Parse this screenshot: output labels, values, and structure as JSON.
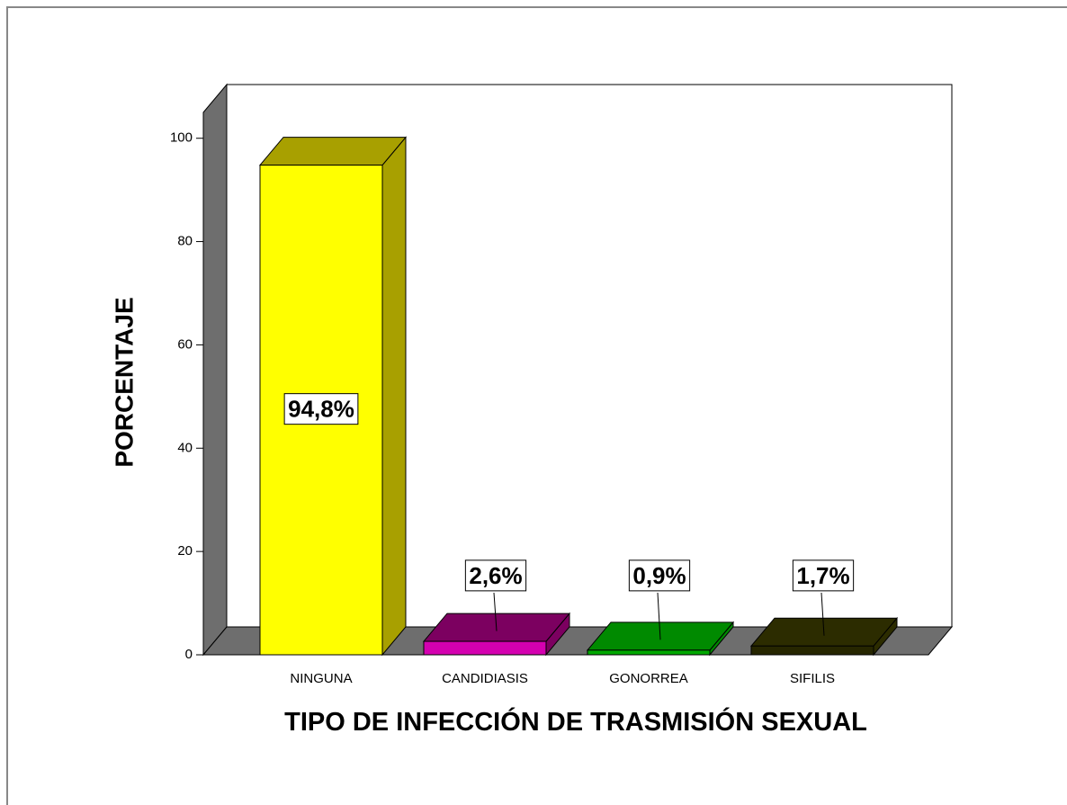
{
  "chart_data": {
    "type": "bar3d",
    "ylabel": "PORCENTAJE",
    "xlabel": "TIPO DE INFECCIÓN DE TRASMISIÓN SEXUAL",
    "categories": [
      "NINGUNA",
      "CANDIDIASIS",
      "GONORREA",
      "SIFILIS"
    ],
    "values": [
      94.8,
      2.6,
      0.9,
      1.7
    ],
    "value_labels": [
      "94,8%",
      "2,6%",
      "0,9%",
      "1,7%"
    ],
    "colors": [
      "#ffff00",
      "#d400b0",
      "#00a800",
      "#262600"
    ],
    "side_colors": [
      "#a8a000",
      "#7c0060",
      "#008a00",
      "#2c2c00"
    ],
    "ylim": [
      0,
      105
    ],
    "yticks": [
      0,
      20,
      40,
      60,
      80,
      100
    ]
  }
}
